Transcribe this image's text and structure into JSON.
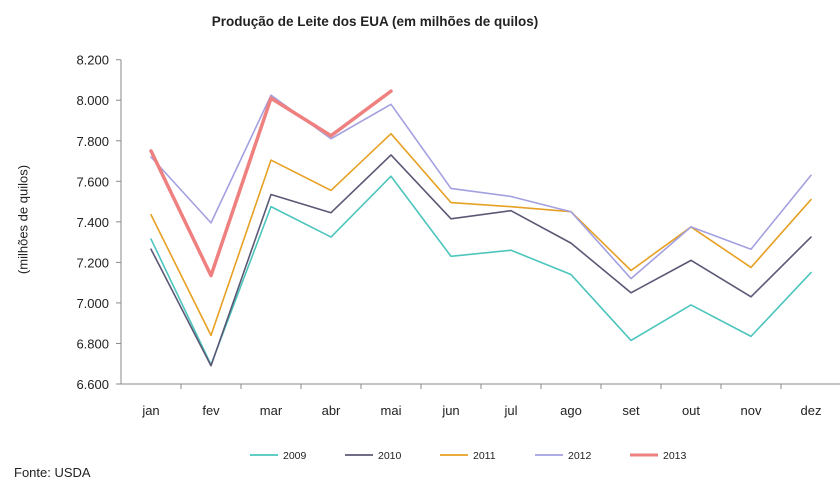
{
  "chart_data": {
    "type": "line",
    "title": "Produção de Leite dos EUA (em milhões de quilos)",
    "xlabel": "",
    "ylabel": "(milhões de quilos)",
    "ylim": [
      6600,
      8200
    ],
    "yticks": [
      6600,
      6800,
      7000,
      7200,
      7400,
      7600,
      7800,
      8000,
      8200
    ],
    "ytick_labels": [
      "6.600",
      "6.800",
      "7.000",
      "7.200",
      "7.400",
      "7.600",
      "7.800",
      "8.000",
      "8.200"
    ],
    "categories": [
      "jan",
      "fev",
      "mar",
      "abr",
      "mai",
      "jun",
      "jul",
      "ago",
      "set",
      "out",
      "nov",
      "dez"
    ],
    "grid": false,
    "legend_position": "bottom",
    "series": [
      {
        "name": "2009",
        "color": "#4cc5bd",
        "width": 1.6,
        "values": [
          7315,
          6695,
          7475,
          7325,
          7625,
          7230,
          7260,
          7140,
          6815,
          6990,
          6835,
          7150
        ]
      },
      {
        "name": "2010",
        "color": "#5b5875",
        "width": 1.6,
        "values": [
          7265,
          6690,
          7535,
          7445,
          7730,
          7415,
          7455,
          7295,
          7050,
          7210,
          7030,
          7325
        ]
      },
      {
        "name": "2011",
        "color": "#e6a023",
        "width": 1.6,
        "values": [
          7435,
          6840,
          7705,
          7555,
          7835,
          7495,
          7475,
          7450,
          7160,
          7375,
          7175,
          7510
        ]
      },
      {
        "name": "2012",
        "color": "#a3a0e0",
        "width": 1.6,
        "values": [
          7720,
          7395,
          8025,
          7810,
          7980,
          7565,
          7525,
          7450,
          7120,
          7375,
          7265,
          7630
        ]
      },
      {
        "name": "2013",
        "color": "#ef8080",
        "width": 3.5,
        "values": [
          7750,
          7135,
          8010,
          7825,
          8045,
          null,
          null,
          null,
          null,
          null,
          null,
          null
        ]
      }
    ]
  },
  "source": "Fonte: USDA"
}
